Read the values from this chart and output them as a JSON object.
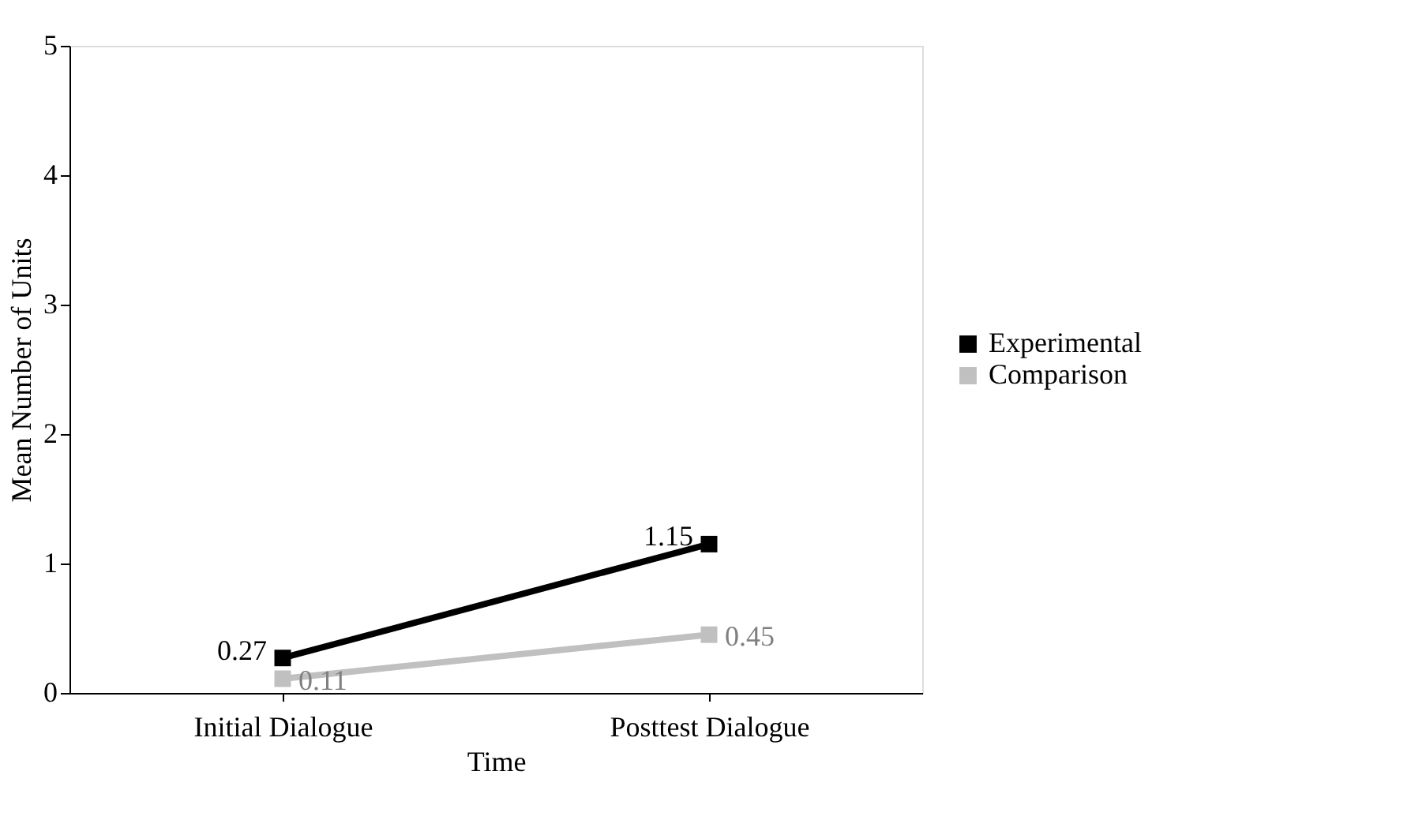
{
  "chart_data": {
    "type": "line",
    "xlabel": "Time",
    "ylabel": "Mean Number of Units",
    "categories": [
      "Initial Dialogue",
      "Posttest Dialogue"
    ],
    "series": [
      {
        "name": "Experimental",
        "color": "#000000",
        "values": [
          0.27,
          1.15
        ]
      },
      {
        "name": "Comparison",
        "color": "#c0c0c0",
        "values": [
          0.11,
          0.45
        ]
      }
    ],
    "ylim": [
      0,
      5
    ],
    "yticks": [
      0,
      1,
      2,
      3,
      4,
      5
    ],
    "grid": false,
    "legend": "right",
    "marker": "square",
    "line_style": "solid",
    "data_labels": true
  }
}
